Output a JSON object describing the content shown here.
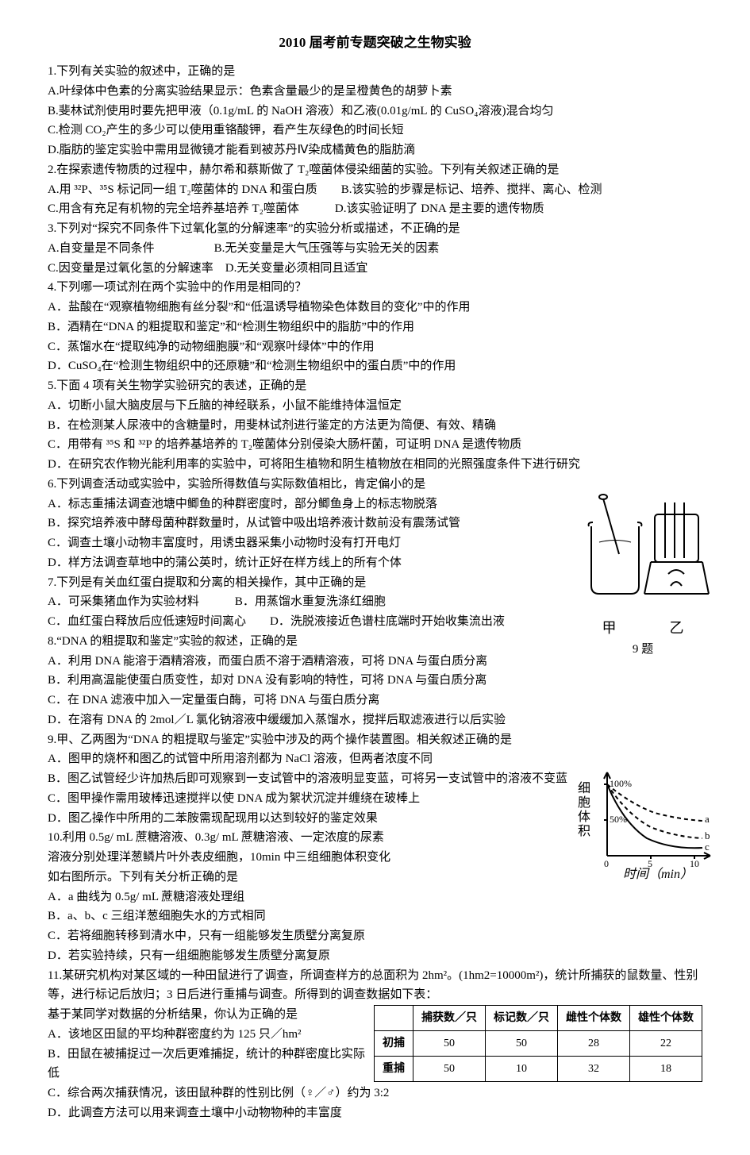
{
  "title": "2010 届考前专题突破之生物实验",
  "lines": [
    "1.下列有关实验的叙述中，正确的是",
    "A.叶绿体中色素的分离实验结果显示：色素含量最少的是呈橙黄色的胡萝卜素",
    "B.斐林试剂使用时要先把甲液（0.1g/mL 的 NaOH 溶液）和乙液(0.01g/mL 的 CuSO₄溶液)混合均匀",
    "C.检测 CO₂产生的多少可以使用重铬酸钾，看产生灰绿色的时间长短",
    "D.脂肪的鉴定实验中需用显微镜才能看到被苏丹Ⅳ染成橘黄色的脂肪滴",
    "2.在探索遗传物质的过程中，赫尔希和蔡斯做了 T₂噬菌体侵染细菌的实验。下列有关叙述正确的是",
    "A.用 ³²P、³⁵S 标记同一组 T₂噬菌体的 DNA 和蛋白质　　B.该实验的步骤是标记、培养、搅拌、离心、检测",
    "C.用含有充足有机物的完全培养基培养 T₂噬菌体　　　D.该实验证明了 DNA 是主要的遗传物质",
    "3.下列对“探究不同条件下过氧化氢的分解速率”的实验分析或描述，不正确的是",
    "A.自变量是不同条件　　　　　B.无关变量是大气压强等与实验无关的因素",
    "C.因变量是过氧化氢的分解速率　D.无关变量必须相同且适宜",
    "4.下列哪一项试剂在两个实验中的作用是相同的？",
    "A．盐酸在“观察植物细胞有丝分裂”和“低温诱导植物染色体数目的变化”中的作用",
    "B．酒精在“DNA 的粗提取和鉴定”和“检测生物组织中的脂肪”中的作用",
    "C．蒸馏水在“提取纯净的动物细胞膜”和“观察叶绿体”中的作用",
    "D．CuSO₄在“检测生物组织中的还原糖”和“检测生物组织中的蛋白质”中的作用",
    "5.下面 4 项有关生物学实验研究的表述，正确的是",
    "A．切断小鼠大脑皮层与下丘脑的神经联系，小鼠不能维持体温恒定",
    "B．在检测某人尿液中的含糖量时，用斐林试剂进行鉴定的方法更为简便、有效、精确",
    "C．用带有 ³⁵S 和 ³²P 的培养基培养的 T₂噬菌体分别侵染大肠杆菌，可证明 DNA 是遗传物质",
    "D．在研究农作物光能利用率的实验中，可将阳生植物和阴生植物放在相同的光照强度条件下进行研究",
    "6.下列调查活动或实验中，实验所得数值与实际数值相比，肯定偏小的是",
    "A．标志重捕法调查池塘中鲫鱼的种群密度时，部分鲫鱼身上的标志物脱落",
    "B．探究培养液中酵母菌种群数量时，从试管中吸出培养液计数前没有震荡试管",
    "C．调查土壤小动物丰富度时，用诱虫器采集小动物时没有打开电灯",
    "D．样方法调查草地中的蒲公英时，统计正好在样方线上的所有个体",
    "7.下列是有关血红蛋白提取和分离的相关操作，其中正确的是",
    "A．可采集猪血作为实验材料　　　B．用蒸馏水重复洗涤红细胞",
    "C．血红蛋白释放后应低速短时间离心　　D．洗脱液接近色谱柱底端时开始收集流出液",
    "8.“DNA 的粗提取和鉴定”实验的叙述，正确的是",
    "A．利用 DNA 能溶于酒精溶液，而蛋白质不溶于酒精溶液，可将 DNA 与蛋白质分离",
    "B．利用高温能使蛋白质变性，却对 DNA 没有影响的特性，可将 DNA 与蛋白质分离",
    "C．在 DNA 滤液中加入一定量蛋白酶，可将 DNA 与蛋白质分离",
    "D．在溶有 DNA 的 2mol／L 氯化钠溶液中缓缓加入蒸馏水，搅拌后取滤液进行以后实验",
    "9.甲、乙两图为“DNA 的粗提取与鉴定”实验中涉及的两个操作装置图。相关叙述正确的是",
    "A．图甲的烧杯和图乙的试管中所用溶剂都为 NaCl 溶液，但两者浓度不同",
    "B．图乙试管经少许加热后即可观察到一支试管中的溶液明显变蓝，可将另一支试管中的溶液不变蓝",
    "C．图甲操作需用玻棒迅速搅拌以使 DNA 成为絮状沉淀并缠绕在玻棒上",
    "D．图乙操作中所用的二苯胺需现配现用以达到较好的鉴定效果",
    "10.利用 0.5g/ mL 蔗糖溶液、0.3g/ mL 蔗糖溶液、一定浓度的尿素",
    "溶液分别处理洋葱鳞片叶外表皮细胞，10min 中三组细胞体积变化",
    "如右图所示。下列有关分析正确的是",
    "A．a 曲线为 0.5g/ mL 蔗糖溶液处理组",
    "B．a、b、c 三组洋葱细胞失水的方式相同",
    "C．若将细胞转移到清水中，只有一组能够发生质壁分离复原",
    "D．若实验持续，只有一组细胞能够发生质壁分离复原"
  ],
  "q11_intro": "11.某研究机构对某区域的一种田鼠进行了调查，所调查样方的总面积为 2hm²。(1hm2=10000m²)，统计所捕获的鼠数量、性别等，进行标记后放归；3 日后进行重捕与调查。所得到的调查数据如下表：",
  "q11_items": [
    "A．该地区田鼠的平均种群密度约为 125 只／hm²",
    "B．田鼠在被捕捉过一次后更难捕捉，统计的种群密度比实际低",
    "C．综合两次捕获情况，该田鼠种群的性别比例（♀／♂）约为 3:2",
    "D．此调查方法可以用来调查土壤中小动物物种的丰富度"
  ],
  "q11_sub": "基于某同学对数据的分析结果，你认为正确的是",
  "table": {
    "headers": [
      "",
      "捕获数／只",
      "标记数／只",
      "雌性个体数",
      "雄性个体数"
    ],
    "rows": [
      [
        "初捕",
        "50",
        "50",
        "28",
        "22"
      ],
      [
        "重捕",
        "50",
        "10",
        "32",
        "18"
      ]
    ]
  },
  "fig9": {
    "left_label": "甲",
    "right_label": "乙",
    "caption": "9 题"
  },
  "fig10": {
    "y_label": "细胞体积",
    "x_label": "时间（min）",
    "y_ticks": [
      "100%",
      "50%"
    ],
    "x_ticks": [
      "0",
      "5",
      "10"
    ],
    "curves": [
      "a",
      "b",
      "c"
    ],
    "colors": {
      "axis": "#000",
      "curve": "#000"
    }
  }
}
